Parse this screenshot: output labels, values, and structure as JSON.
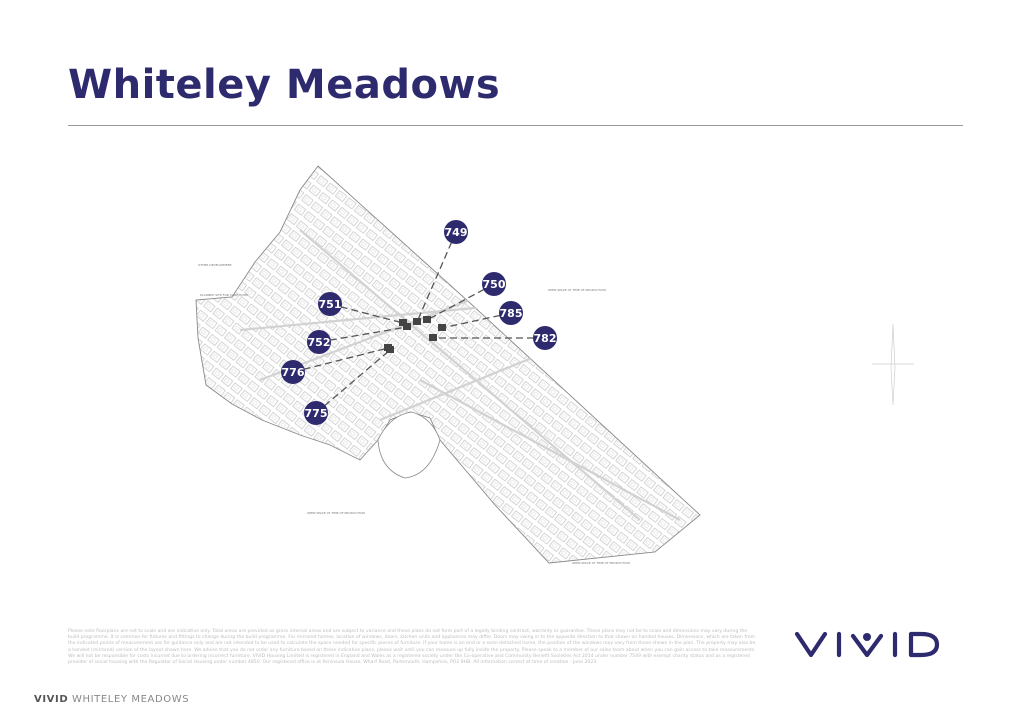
{
  "page": {
    "title": "Whiteley Meadows"
  },
  "site_plan": {
    "marker_color": "#2e2a6e",
    "plots": [
      "749",
      "750",
      "785",
      "782",
      "751",
      "752",
      "776",
      "775"
    ],
    "area_labels": {
      "other_development": "OTHER DEVELOPMENT",
      "care_home": "PLANNED SITE FOR CARE HOME",
      "open_space_east": "OPEN SPACE AT TIME OF PRODUCTION",
      "open_space_south": "OPEN SPACE AT TIME OF PRODUCTION",
      "open_space_southeast": "OPEN SPACE AT TIME OF PRODUCTION"
    },
    "compass": "north-arrow-icon"
  },
  "disclaimer": "Please note floorplans are not to scale and are indicative only. Total areas are provided as gross internal areas and are subject to variance and these plans do not form part of a legally binding contract, warranty or guarantee. These plans may not be to scale and dimensions may vary during the build programme. It is common for fixtures and fittings to change during the build programme. For mirrored homes, location of windows, doors, kitchen units and appliances may differ. Doors may swing in to the opposite direction to that shown on handed houses. Dimensions, which are taken from the indicated points of measurement are for guidance only and are not intended to be used to calculate the space needed for specific pieces of furniture. If your home is an end or a semi-detached home, the position of the windows may vary from those shown in the plan. The property may also be a handed (mirrored) version of the layout shown here. We advise that you do not order any furniture based on these indicative plans; please wait until you can measure up fully inside the property. Please speak to a member of our sales team about when you can gain access to take measurements. We will not be responsible for costs incurred due to ordering incorrect furniture. VIVID Housing Limited is registered in England and Wales as a registered society under the Co-operative and Community Benefit Societies Act 2014 under number 7549 with exempt charity status and as a registered provider of social housing with the Regulator of Social Housing under number 4850. Our registered office is at Peninsula House, Wharf Road, Portsmouth, Hampshire, PO2 8HB. All information correct at time of creation - June 2023.",
  "logo": {
    "text": "VIVID",
    "color": "#2e2a6e"
  },
  "footer": {
    "brand": "VIVID",
    "development": "WHITELEY MEADOWS"
  }
}
